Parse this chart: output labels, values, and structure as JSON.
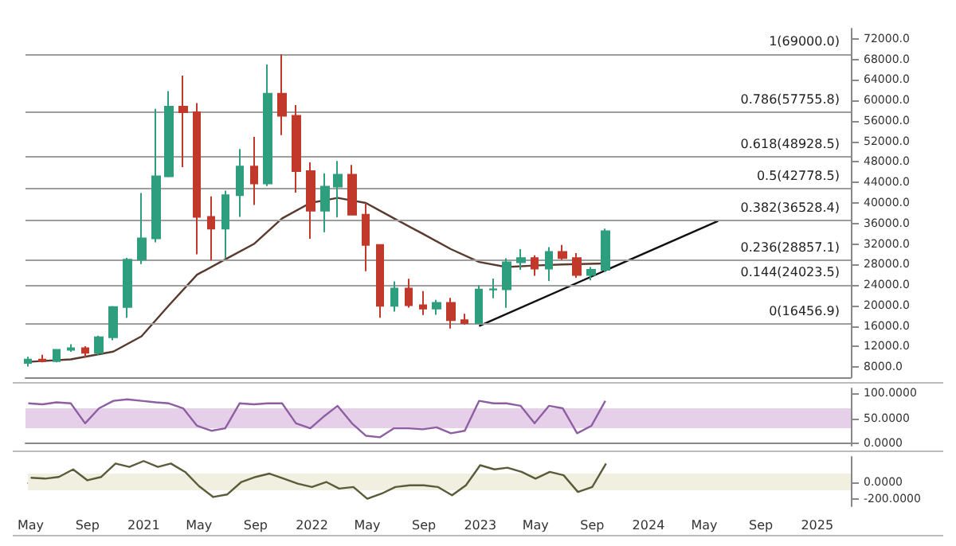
{
  "chart_data": [
    {
      "type": "candlestick",
      "colors": [
        "#2f9e7e",
        "#c0392b",
        "#2f9e7e",
        "#2f9e7e",
        "#c0392b",
        "#2f9e7e",
        "#2f9e7e",
        "#2f9e7e",
        "#2f9e7e",
        "#2f9e7e",
        "#2f9e7e",
        "#c0392b",
        "#c0392b",
        "#c0392b",
        "#2f9e7e",
        "#2f9e7e",
        "#c0392b",
        "#2f9e7e",
        "#c0392b",
        "#c0392b",
        "#c0392b",
        "#2f9e7e",
        "#2f9e7e",
        "#c0392b",
        "#c0392b",
        "#c0392b",
        "#2f9e7e",
        "#c0392b",
        "#c0392b",
        "#2f9e7e",
        "#c0392b",
        "#c0392b",
        "#2f9e7e",
        "#2f9e7e",
        "#2f9e7e",
        "#2f9e7e",
        "#c0392b",
        "#2f9e7e",
        "#c0392b",
        "#c0392b",
        "#2f9e7e",
        "#2f9e7e"
      ],
      "x": [
        "2020-05",
        "2020-06",
        "2020-07",
        "2020-08",
        "2020-09",
        "2020-10",
        "2020-11",
        "2020-12",
        "2021-01",
        "2021-02",
        "2021-03",
        "2021-04",
        "2021-05",
        "2021-06",
        "2021-07",
        "2021-08",
        "2021-09",
        "2021-10",
        "2021-11",
        "2021-12",
        "2022-01",
        "2022-02",
        "2022-03",
        "2022-04",
        "2022-05",
        "2022-06",
        "2022-07",
        "2022-08",
        "2022-09",
        "2022-10",
        "2022-11",
        "2022-12",
        "2023-01",
        "2023-02",
        "2023-03",
        "2023-04",
        "2023-05",
        "2023-06",
        "2023-07",
        "2023-08",
        "2023-09",
        "2023-10"
      ],
      "ohlc": [
        [
          8800,
          10000,
          8100,
          9450
        ],
        [
          9450,
          10400,
          8900,
          9140
        ],
        [
          9140,
          11400,
          8900,
          11350
        ],
        [
          11350,
          12450,
          10950,
          11650
        ],
        [
          11650,
          12050,
          9850,
          10780
        ],
        [
          10780,
          14100,
          10400,
          13800
        ],
        [
          13800,
          19900,
          13200,
          19700
        ],
        [
          19700,
          29300,
          17600,
          28950
        ],
        [
          28950,
          41950,
          28100,
          33100
        ],
        [
          33100,
          58350,
          32300,
          45200
        ],
        [
          45200,
          61800,
          45000,
          58800
        ],
        [
          58800,
          64850,
          47000,
          57700
        ],
        [
          57700,
          59500,
          30000,
          37300
        ],
        [
          37300,
          41300,
          28800,
          35000
        ],
        [
          35000,
          42400,
          29300,
          41500
        ],
        [
          41500,
          50500,
          37300,
          47100
        ],
        [
          47100,
          52900,
          39600,
          43800
        ],
        [
          43800,
          67000,
          43300,
          61300
        ],
        [
          61300,
          69000,
          53250,
          57000
        ],
        [
          57000,
          59100,
          42000,
          46200
        ],
        [
          46200,
          47900,
          33000,
          38500
        ],
        [
          38500,
          45800,
          34300,
          43200
        ],
        [
          43200,
          48200,
          37200,
          45500
        ],
        [
          45500,
          47400,
          37700,
          37700
        ],
        [
          37700,
          40000,
          26700,
          31800
        ],
        [
          31800,
          31900,
          17600,
          19950
        ],
        [
          19950,
          24700,
          18800,
          23300
        ],
        [
          23300,
          25200,
          19600,
          20050
        ],
        [
          20050,
          22800,
          18150,
          19400
        ],
        [
          19400,
          21100,
          18200,
          20500
        ],
        [
          20500,
          21500,
          15500,
          17150
        ],
        [
          17150,
          18400,
          16300,
          16550
        ],
        [
          16550,
          23950,
          16500,
          23100
        ],
        [
          23100,
          25250,
          21400,
          23150
        ],
        [
          23150,
          29200,
          19550,
          28450
        ],
        [
          28450,
          31000,
          26950,
          29250
        ],
        [
          29250,
          29800,
          25800,
          27200
        ],
        [
          27200,
          31400,
          24800,
          30470
        ],
        [
          30470,
          31800,
          28900,
          29230
        ],
        [
          29230,
          30200,
          25400,
          25940
        ],
        [
          25940,
          27500,
          24900,
          26970
        ],
        [
          26970,
          35000,
          26500,
          34500
        ]
      ],
      "series": [
        {
          "type": "line",
          "color": "#5a3a2e",
          "x": [
            "2020-05",
            "2020-08",
            "2020-11",
            "2021-01",
            "2021-03",
            "2021-05",
            "2021-07",
            "2021-09",
            "2021-11",
            "2022-01",
            "2022-03",
            "2022-05",
            "2022-07",
            "2022-09",
            "2022-11",
            "2023-01",
            "2023-03",
            "2023-05",
            "2023-07",
            "2023-10"
          ],
          "values": [
            9000,
            9500,
            11000,
            14000,
            20000,
            26000,
            29000,
            32000,
            37000,
            40000,
            41000,
            40000,
            37000,
            34000,
            31000,
            28500,
            27500,
            27800,
            28000,
            28200
          ]
        },
        {
          "type": "line",
          "color": "#111111",
          "x": [
            "2023-01",
            "2024-06"
          ],
          "values": [
            16000,
            36500
          ]
        }
      ],
      "ref_lines": [
        {
          "axis": "y",
          "value": 69000,
          "label": "1(69000.0)",
          "color": "#9e9e9e"
        },
        {
          "axis": "y",
          "value": 57755.8,
          "label": "0.786(57755.8)",
          "color": "#9e9e9e"
        },
        {
          "axis": "y",
          "value": 48928.5,
          "label": "0.618(48928.5)",
          "color": "#9e9e9e"
        },
        {
          "axis": "y",
          "value": 42778.5,
          "label": "0.5(42778.5)",
          "color": "#9e9e9e"
        },
        {
          "axis": "y",
          "value": 36528.4,
          "label": "0.382(36528.4)",
          "color": "#9e9e9e"
        },
        {
          "axis": "y",
          "value": 28857.1,
          "label": "0.236(28857.1)",
          "color": "#9e9e9e"
        },
        {
          "axis": "y",
          "value": 24023.5,
          "label": "0.144(24023.5)",
          "color": "#9e9e9e"
        },
        {
          "axis": "y",
          "value": 16456.9,
          "label": "0(16456.9)",
          "color": "#9e9e9e"
        }
      ],
      "xlim": [
        "2020-04-25",
        "2025-03-15"
      ],
      "ylim": [
        6000,
        74000
      ],
      "yticks": [
        {
          "value": 8000,
          "label": "8000.0"
        },
        {
          "value": 12000,
          "label": "12000.0"
        },
        {
          "value": 16000,
          "label": "16000.0"
        },
        {
          "value": 20000,
          "label": "20000.0"
        },
        {
          "value": 24000,
          "label": "24000.0"
        },
        {
          "value": 28000,
          "label": "28000.0"
        },
        {
          "value": 32000,
          "label": "32000.0"
        },
        {
          "value": 36000,
          "label": "36000.0"
        },
        {
          "value": 40000,
          "label": "40000.0"
        },
        {
          "value": 44000,
          "label": "44000.0"
        },
        {
          "value": 48000,
          "label": "48000.0"
        },
        {
          "value": 52000,
          "label": "52000.0"
        },
        {
          "value": 56000,
          "label": "56000.0"
        },
        {
          "value": 60000,
          "label": "60000.0"
        },
        {
          "value": 64000,
          "label": "64000.0"
        },
        {
          "value": 68000,
          "label": "68000.0"
        },
        {
          "value": 72000,
          "label": "72000.0"
        }
      ],
      "tick_labels": "y"
    },
    {
      "type": "line",
      "series": [
        {
          "color": "#8e5ea2",
          "values": [
            80,
            78,
            82,
            80,
            40,
            70,
            85,
            88,
            85,
            82,
            80,
            70,
            35,
            25,
            30,
            80,
            78,
            80,
            80,
            40,
            30,
            55,
            75,
            40,
            15,
            12,
            30,
            30,
            28,
            32,
            20,
            25,
            85,
            80,
            80,
            75,
            40,
            75,
            70,
            20,
            35,
            85
          ]
        }
      ],
      "x": [
        "2020-05",
        "2020-06",
        "2020-07",
        "2020-08",
        "2020-09",
        "2020-10",
        "2020-11",
        "2020-12",
        "2021-01",
        "2021-02",
        "2021-03",
        "2021-04",
        "2021-05",
        "2021-06",
        "2021-07",
        "2021-08",
        "2021-09",
        "2021-10",
        "2021-11",
        "2021-12",
        "2022-01",
        "2022-02",
        "2022-03",
        "2022-04",
        "2022-05",
        "2022-06",
        "2022-07",
        "2022-08",
        "2022-09",
        "2022-10",
        "2022-11",
        "2022-12",
        "2023-01",
        "2023-02",
        "2023-03",
        "2023-04",
        "2023-05",
        "2023-06",
        "2023-07",
        "2023-08",
        "2023-09",
        "2023-10"
      ],
      "bands": [
        {
          "axis": "y",
          "from": 30,
          "to": 70,
          "color": "#e6cfe8"
        }
      ],
      "xlim": [
        "2020-04-25",
        "2025-03-15"
      ],
      "ylim": [
        -5,
        110
      ],
      "yticks": [
        {
          "value": 0,
          "label": "0.0000"
        },
        {
          "value": 50,
          "label": "50.0000"
        },
        {
          "value": 100,
          "label": "100.0000"
        }
      ],
      "tick_labels": "y"
    },
    {
      "type": "line",
      "series": [
        {
          "color": "#5b5b3a",
          "values": [
            50,
            40,
            60,
            150,
            20,
            60,
            220,
            180,
            250,
            180,
            220,
            120,
            -50,
            -180,
            -150,
            0,
            60,
            100,
            40,
            -20,
            -60,
            0,
            -80,
            -60,
            -200,
            -140,
            -60,
            -40,
            -40,
            -60,
            -160,
            -40,
            200,
            150,
            170,
            120,
            40,
            120,
            80,
            -120,
            -60,
            220
          ]
        }
      ],
      "x": [
        "2020-05",
        "2020-06",
        "2020-07",
        "2020-08",
        "2020-09",
        "2020-10",
        "2020-11",
        "2020-12",
        "2021-01",
        "2021-02",
        "2021-03",
        "2021-04",
        "2021-05",
        "2021-06",
        "2021-07",
        "2021-08",
        "2021-09",
        "2021-10",
        "2021-11",
        "2021-12",
        "2022-01",
        "2022-02",
        "2022-03",
        "2022-04",
        "2022-05",
        "2022-06",
        "2022-07",
        "2022-08",
        "2022-09",
        "2022-10",
        "2022-11",
        "2022-12",
        "2023-01",
        "2023-02",
        "2023-03",
        "2023-04",
        "2023-05",
        "2023-06",
        "2023-07",
        "2023-08",
        "2023-09",
        "2023-10"
      ],
      "bands": [
        {
          "axis": "y",
          "from": -100,
          "to": 100,
          "color": "#f1efdf"
        }
      ],
      "xlim": [
        "2020-04-25",
        "2025-03-15"
      ],
      "ylim": [
        -290,
        300
      ],
      "xticks": [
        {
          "value": "2020-05",
          "label": "May"
        },
        {
          "value": "2020-09",
          "label": "Sep"
        },
        {
          "value": "2021-01",
          "label": "2021"
        },
        {
          "value": "2021-05",
          "label": "May"
        },
        {
          "value": "2021-09",
          "label": "Sep"
        },
        {
          "value": "2022-01",
          "label": "2022"
        },
        {
          "value": "2022-05",
          "label": "May"
        },
        {
          "value": "2022-09",
          "label": "Sep"
        },
        {
          "value": "2023-01",
          "label": "2023"
        },
        {
          "value": "2023-05",
          "label": "May"
        },
        {
          "value": "2023-09",
          "label": "Sep"
        },
        {
          "value": "2024-01",
          "label": "2024"
        },
        {
          "value": "2024-05",
          "label": "May"
        },
        {
          "value": "2024-09",
          "label": "Sep"
        },
        {
          "value": "2025-01",
          "label": "2025"
        }
      ],
      "yticks": [
        {
          "value": 0,
          "label": "0.0000"
        },
        {
          "value": -200,
          "label": "-200.0000"
        }
      ]
    }
  ]
}
